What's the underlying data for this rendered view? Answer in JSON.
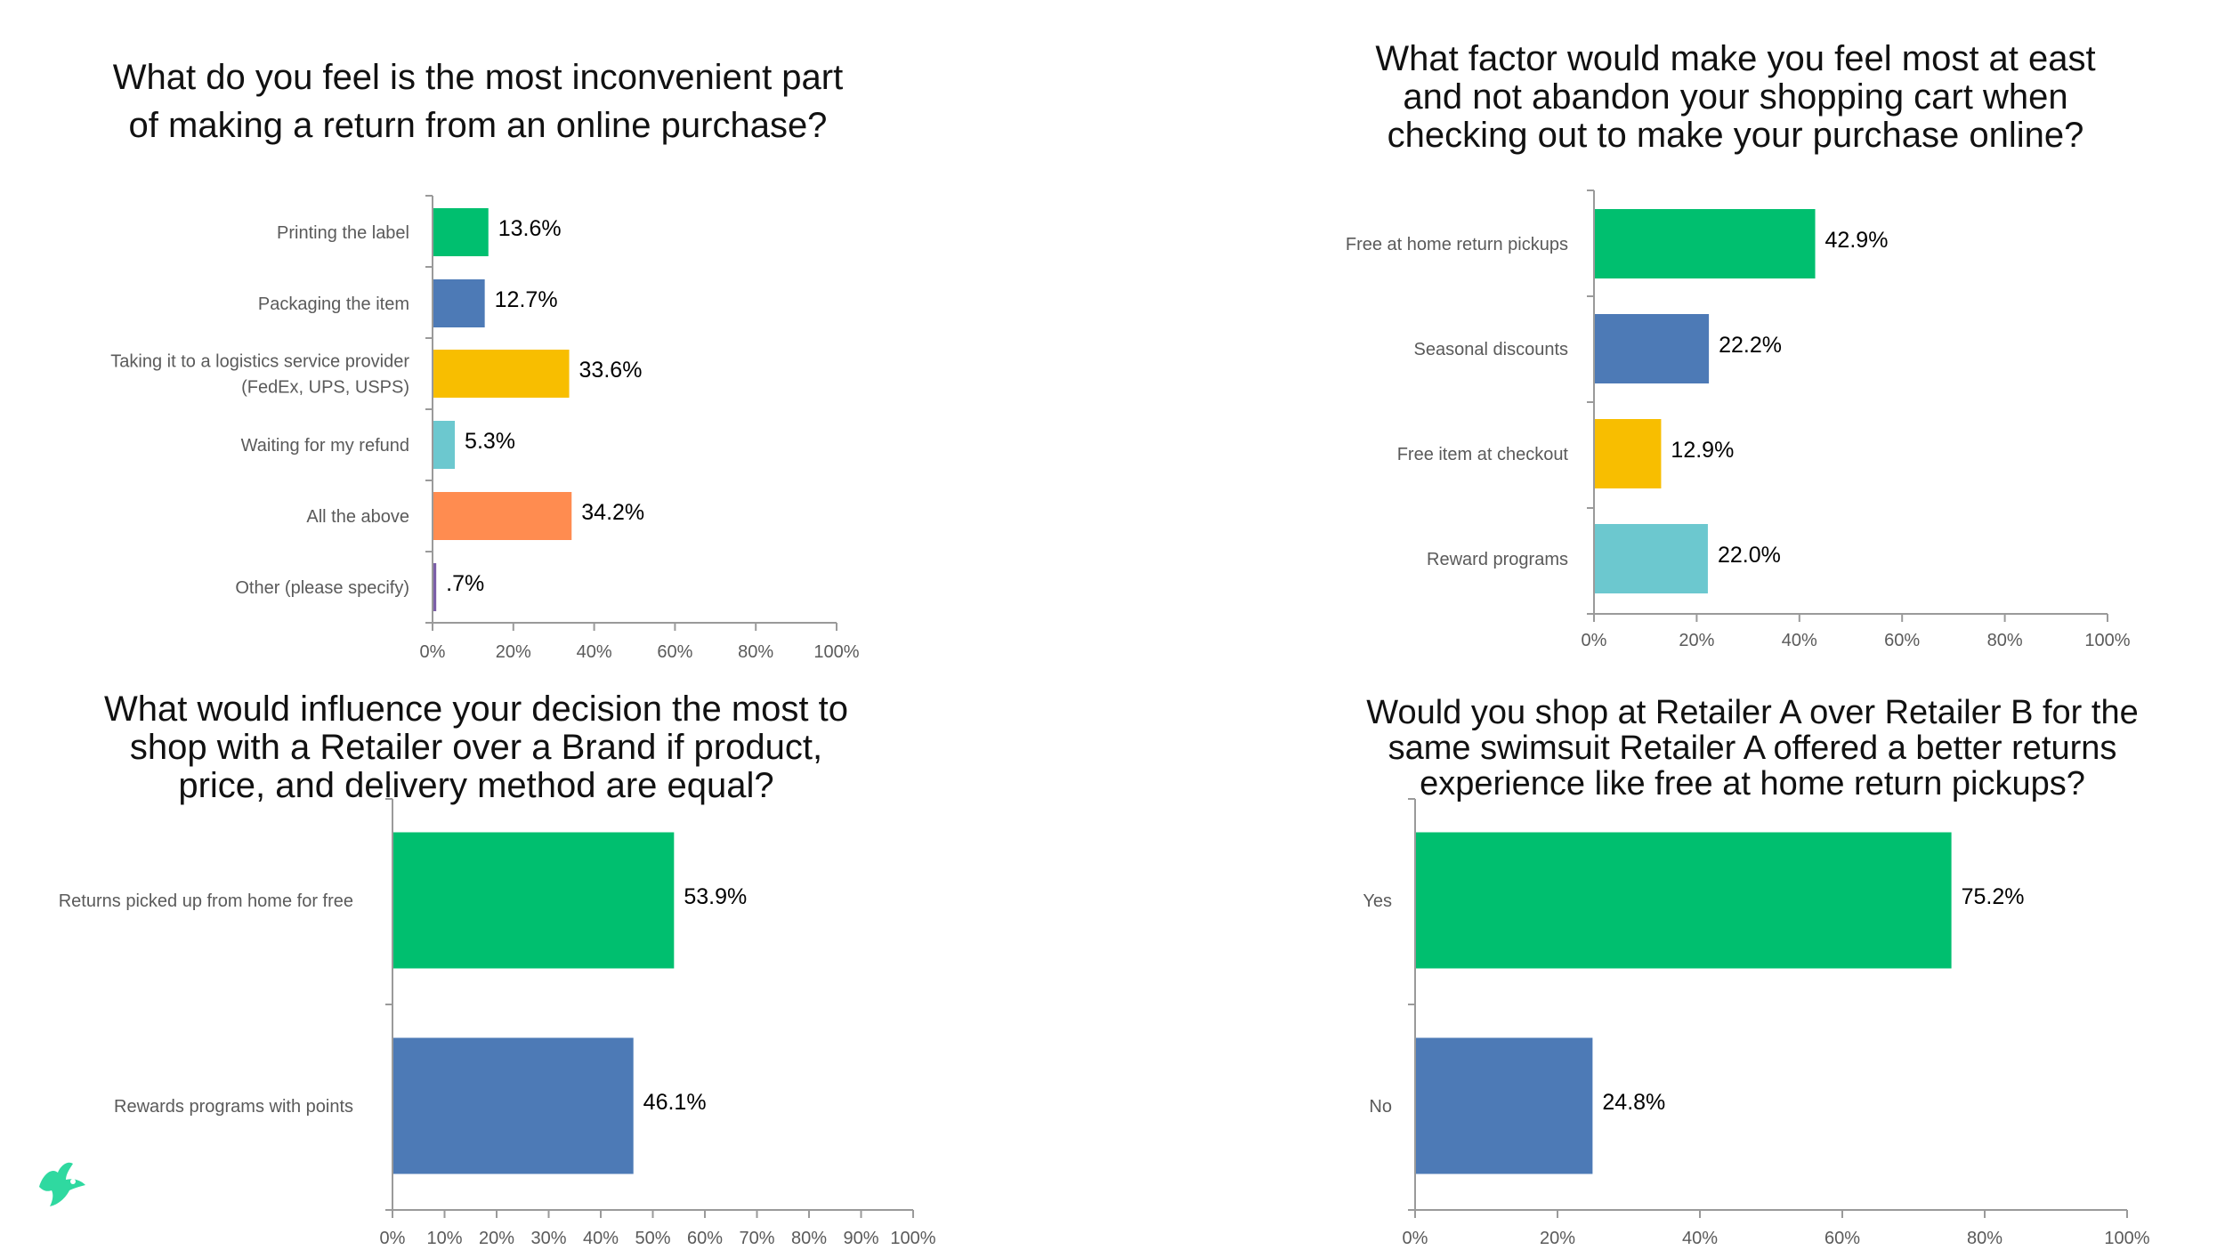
{
  "colors": {
    "green": "#00BF6F",
    "blue": "#4D7AB6",
    "yellow": "#F8BE00",
    "teal": "#6CC8CF",
    "orange": "#FF8C50",
    "purple": "#7B5EA7",
    "axis": "#9a9a9a",
    "label_text": "#5a5a5a",
    "title_text": "#111111",
    "logo": "#2FD9A0"
  },
  "logo": {
    "icon": "bird-logo-icon"
  },
  "chart_data": [
    {
      "type": "bar",
      "orientation": "horizontal",
      "title": "What do you feel is the most inconvenient part of making a return from an online purchase?",
      "title_lines": [
        "What do you feel is the most inconvenient part",
        "of making a return from an online purchase?"
      ],
      "categories": [
        "Printing the label",
        "Packaging the item",
        "Taking it to a logistics service provider (FedEx, UPS, USPS)",
        "Waiting for my refund",
        "All the above",
        "Other (please specify)"
      ],
      "category_lines": [
        [
          "Printing the label"
        ],
        [
          "Packaging the item"
        ],
        [
          "Taking it to a logistics service provider",
          "(FedEx, UPS, USPS)"
        ],
        [
          "Waiting for my refund"
        ],
        [
          "All the above"
        ],
        [
          "Other (please specify)"
        ]
      ],
      "values": [
        13.6,
        12.7,
        33.6,
        5.3,
        34.2,
        0.7
      ],
      "data_labels": [
        "13.6%",
        "12.7%",
        "33.6%",
        "5.3%",
        "34.2%",
        ".7%"
      ],
      "bar_colors": [
        "green",
        "blue",
        "yellow",
        "teal",
        "orange",
        "purple"
      ],
      "xlim": [
        0,
        100
      ],
      "ticks": [
        "0%",
        "20%",
        "40%",
        "60%",
        "80%",
        "100%"
      ],
      "xlabel": "",
      "ylabel": "",
      "grid": false,
      "legend": "none"
    },
    {
      "type": "bar",
      "orientation": "horizontal",
      "title": "What factor would make you feel most at east and not abandon your shopping cart when checking out to make your purchase online?",
      "title_lines": [
        "What factor would make you feel most at east",
        "and not abandon your shopping cart when",
        "checking out to make your purchase online?"
      ],
      "categories": [
        "Free at home return pickups",
        "Seasonal discounts",
        "Free item at checkout",
        "Reward programs"
      ],
      "category_lines": [
        [
          "Free at home return pickups"
        ],
        [
          "Seasonal discounts"
        ],
        [
          "Free item at checkout"
        ],
        [
          "Reward programs"
        ]
      ],
      "values": [
        42.9,
        22.2,
        12.9,
        22.0
      ],
      "data_labels": [
        "42.9%",
        "22.2%",
        "12.9%",
        "22.0%"
      ],
      "bar_colors": [
        "green",
        "blue",
        "yellow",
        "teal"
      ],
      "xlim": [
        0,
        100
      ],
      "ticks": [
        "0%",
        "20%",
        "40%",
        "60%",
        "80%",
        "100%"
      ],
      "xlabel": "",
      "ylabel": "",
      "grid": false,
      "legend": "none"
    },
    {
      "type": "bar",
      "orientation": "horizontal",
      "title": "What would influence your decision the most to shop with a Retailer over a Brand if product, price, and delivery method are equal?",
      "title_lines": [
        "What would influence your decision the most to",
        "shop with a Retailer over a Brand if product,",
        "price, and delivery method are equal?"
      ],
      "categories": [
        "Returns picked up from home for free",
        "Rewards programs with points"
      ],
      "category_lines": [
        [
          "Returns picked up from home for free"
        ],
        [
          "Rewards programs with points"
        ]
      ],
      "values": [
        53.9,
        46.1
      ],
      "data_labels": [
        "53.9%",
        "46.1%"
      ],
      "bar_colors": [
        "green",
        "blue"
      ],
      "xlim": [
        0,
        100
      ],
      "ticks": [
        "0%",
        "10%",
        "20%",
        "30%",
        "40%",
        "50%",
        "60%",
        "70%",
        "80%",
        "90%",
        "100%"
      ],
      "xlabel": "",
      "ylabel": "",
      "grid": false,
      "legend": "none"
    },
    {
      "type": "bar",
      "orientation": "horizontal",
      "title": "Would you shop at Retailer A over Retailer B for the same swimsuit Retailer A offered a better returns experience like free at home return pickups?",
      "title_lines": [
        "Would you shop at Retailer A over Retailer B for the",
        "same swimsuit Retailer A offered a better returns",
        "experience like free at home return pickups?"
      ],
      "categories": [
        "Yes",
        "No"
      ],
      "category_lines": [
        [
          "Yes"
        ],
        [
          "No"
        ]
      ],
      "values": [
        75.2,
        24.8
      ],
      "data_labels": [
        "75.2%",
        "24.8%"
      ],
      "bar_colors": [
        "green",
        "blue"
      ],
      "xlim": [
        0,
        100
      ],
      "ticks": [
        "0%",
        "20%",
        "40%",
        "60%",
        "80%",
        "100%"
      ],
      "xlabel": "",
      "ylabel": "",
      "grid": false,
      "legend": "none"
    }
  ]
}
